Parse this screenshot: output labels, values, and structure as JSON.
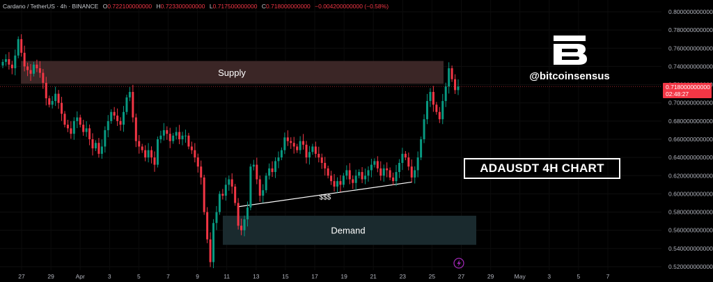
{
  "header": {
    "symbol": "Cardano / TetherUS · 4h · BINANCE",
    "open_label": "O",
    "open": "0.722100000000",
    "high_label": "H",
    "high": "0.723300000000",
    "low_label": "L",
    "low": "0.717500000000",
    "close_label": "C",
    "close": "0.718000000000",
    "change": "−0.004200000000 (−0.58%)"
  },
  "brand": {
    "logo_letter": "B",
    "handle": "@bitcoinsensus"
  },
  "chart_title": "ADAUSDT 4H CHART",
  "price_label": {
    "price": "0.718000000000",
    "countdown": "02:48:27"
  },
  "zones": {
    "supply": "Supply",
    "demand": "Demand",
    "liquidity": "$$$"
  },
  "colors": {
    "up": "#089981",
    "down": "#f23645",
    "supply_zone": "#3b2626",
    "demand_zone": "#1a2a2e",
    "background": "#000000"
  },
  "chart_data": {
    "type": "candlestick",
    "title": "",
    "xlabel": "",
    "ylabel": "",
    "ylim": [
      0.52,
      0.8
    ],
    "yticks": [
      "0.800000000000",
      "0.780000000000",
      "0.760000000000",
      "0.740000000000",
      "0.720000000000",
      "0.700000000000",
      "0.680000000000",
      "0.660000000000",
      "0.640000000000",
      "0.620000000000",
      "0.600000000000",
      "0.580000000000",
      "0.560000000000",
      "0.540000000000",
      "0.520000000000"
    ],
    "xticks": [
      "27",
      "29",
      "Apr",
      "3",
      "5",
      "7",
      "9",
      "11",
      "13",
      "15",
      "17",
      "19",
      "21",
      "23",
      "25",
      "27",
      "29",
      "May",
      "3",
      "5",
      "7"
    ],
    "last_price": 0.718,
    "zones": [
      {
        "name": "Supply",
        "low": 0.721,
        "high": 0.746
      },
      {
        "name": "Demand",
        "low": 0.544,
        "high": 0.576
      }
    ],
    "close_path": [
      0.745,
      0.748,
      0.742,
      0.738,
      0.752,
      0.77,
      0.755,
      0.74,
      0.736,
      0.732,
      0.742,
      0.738,
      0.733,
      0.722,
      0.705,
      0.698,
      0.702,
      0.71,
      0.7,
      0.688,
      0.676,
      0.672,
      0.666,
      0.68,
      0.684,
      0.676,
      0.668,
      0.672,
      0.66,
      0.65,
      0.656,
      0.644,
      0.652,
      0.67,
      0.68,
      0.69,
      0.686,
      0.68,
      0.676,
      0.69,
      0.706,
      0.712,
      0.684,
      0.658,
      0.652,
      0.648,
      0.64,
      0.648,
      0.64,
      0.632,
      0.66,
      0.664,
      0.67,
      0.666,
      0.658,
      0.664,
      0.668,
      0.66,
      0.664,
      0.664,
      0.652,
      0.648,
      0.64,
      0.63,
      0.618,
      0.58,
      0.55,
      0.525,
      0.568,
      0.58,
      0.6,
      0.598,
      0.61,
      0.616,
      0.608,
      0.59,
      0.565,
      0.56,
      0.572,
      0.585,
      0.63,
      0.632,
      0.616,
      0.598,
      0.604,
      0.62,
      0.628,
      0.624,
      0.636,
      0.64,
      0.648,
      0.662,
      0.658,
      0.656,
      0.652,
      0.648,
      0.658,
      0.654,
      0.64,
      0.646,
      0.652,
      0.644,
      0.64,
      0.634,
      0.628,
      0.62,
      0.614,
      0.608,
      0.614,
      0.61,
      0.62,
      0.626,
      0.616,
      0.612,
      0.62,
      0.624,
      0.616,
      0.62,
      0.626,
      0.632,
      0.636,
      0.628,
      0.62,
      0.628,
      0.626,
      0.618,
      0.614,
      0.624,
      0.634,
      0.644,
      0.64,
      0.63,
      0.618,
      0.626,
      0.64,
      0.66,
      0.682,
      0.702,
      0.712,
      0.698,
      0.69,
      0.682,
      0.702,
      0.718,
      0.738,
      0.726,
      0.714,
      0.718
    ],
    "annotations": [
      "Supply",
      "Demand",
      "$$$"
    ]
  }
}
